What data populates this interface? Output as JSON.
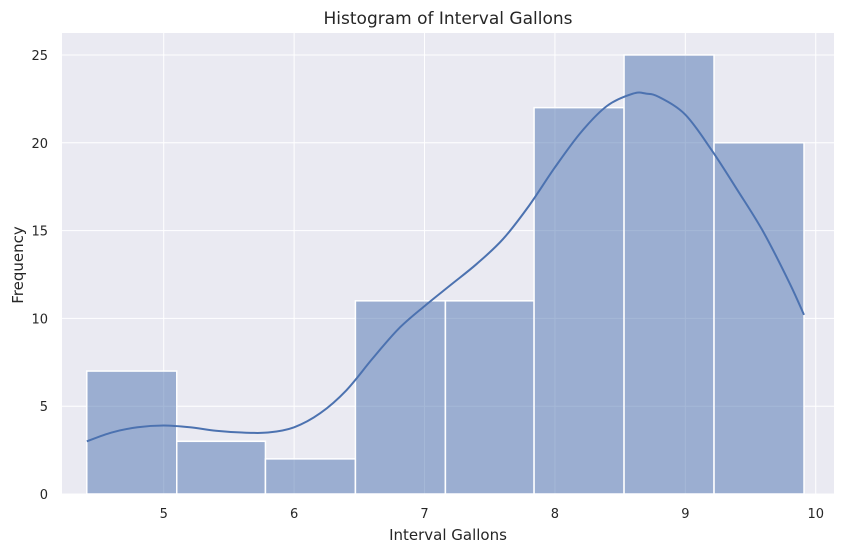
{
  "chart_data": {
    "type": "bar",
    "title": "Histogram of Interval Gallons",
    "xlabel": "Interval Gallons",
    "ylabel": "Frequency",
    "xlim": [
      4.22,
      10.14
    ],
    "ylim": [
      0,
      26.25
    ],
    "xticks": [
      5,
      6,
      7,
      8,
      9,
      10
    ],
    "yticks": [
      0,
      5,
      10,
      15,
      20,
      25
    ],
    "grid": true,
    "bins": [
      {
        "x0": 4.41,
        "x1": 5.1,
        "count": 7
      },
      {
        "x0": 5.1,
        "x1": 5.78,
        "count": 3
      },
      {
        "x0": 5.78,
        "x1": 6.47,
        "count": 2
      },
      {
        "x0": 6.47,
        "x1": 7.16,
        "count": 11
      },
      {
        "x0": 7.16,
        "x1": 7.84,
        "count": 11
      },
      {
        "x0": 7.84,
        "x1": 8.53,
        "count": 22
      },
      {
        "x0": 8.53,
        "x1": 9.22,
        "count": 25
      },
      {
        "x0": 9.22,
        "x1": 9.91,
        "count": 20
      }
    ],
    "kde": {
      "x": [
        4.41,
        4.6,
        4.8,
        5.0,
        5.2,
        5.4,
        5.6,
        5.8,
        6.0,
        6.2,
        6.4,
        6.6,
        6.8,
        7.0,
        7.2,
        7.4,
        7.6,
        7.8,
        8.0,
        8.2,
        8.4,
        8.6,
        8.7,
        8.8,
        9.0,
        9.2,
        9.4,
        9.6,
        9.8,
        9.91
      ],
      "y": [
        3.0,
        3.5,
        3.8,
        3.9,
        3.8,
        3.6,
        3.5,
        3.5,
        3.8,
        4.6,
        5.9,
        7.7,
        9.4,
        10.7,
        11.9,
        13.1,
        14.5,
        16.4,
        18.6,
        20.6,
        22.1,
        22.8,
        22.8,
        22.6,
        21.6,
        19.6,
        17.3,
        14.9,
        12.0,
        10.2
      ]
    },
    "colors": {
      "background": "#eaeaf2",
      "bar_fill": "#4c72b0",
      "bar_opacity": 0.5,
      "line": "#4c72b0",
      "grid": "#ffffff"
    }
  }
}
